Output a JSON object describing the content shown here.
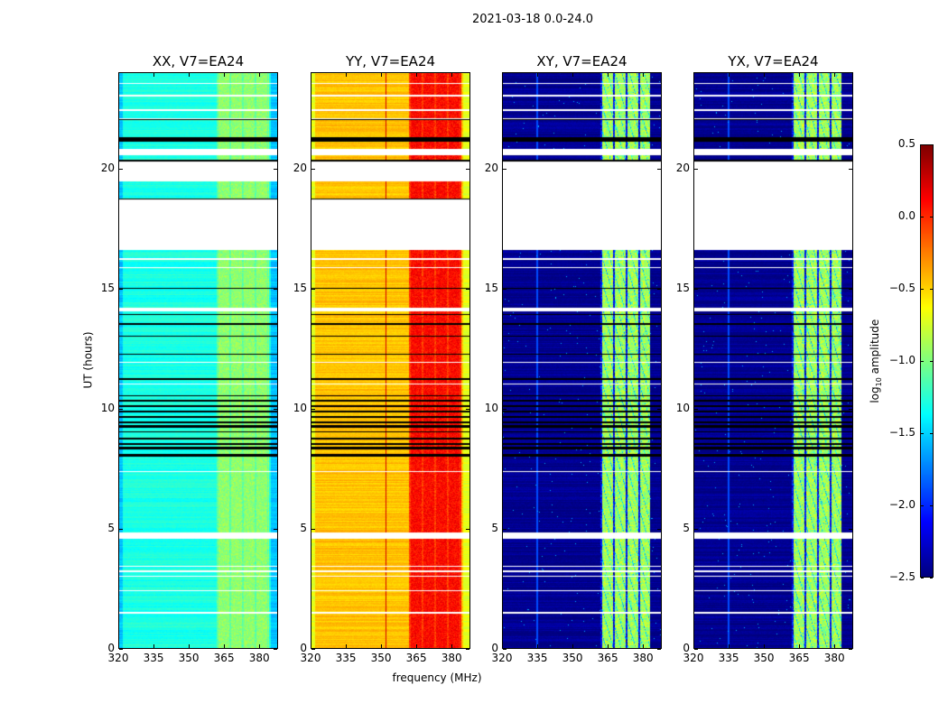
{
  "chart_data": {
    "type": "heatmap",
    "title": "2021-03-18 0.0-24.0",
    "xlabel": "frequency (MHz)",
    "ylabel": "UT (hours)",
    "xlim": [
      320,
      388
    ],
    "ylim": [
      0,
      24
    ],
    "xticks": [
      320,
      335,
      350,
      365,
      380
    ],
    "yticks": [
      0,
      5,
      10,
      15,
      20
    ],
    "colorbar": {
      "label_prefix": "log",
      "label_sub": "10",
      "label_suffix": " amplitude",
      "range": [
        -2.5,
        0.5
      ],
      "ticks": [
        "0.5",
        "0.0",
        "−0.5",
        "−1.0",
        "−1.5",
        "−2.0",
        "−2.5"
      ],
      "tick_values": [
        0.5,
        0.0,
        -0.5,
        -1.0,
        -1.5,
        -2.0,
        -2.5
      ],
      "colormap": "jet"
    },
    "panels": [
      {
        "title": "XX, V7=EA24",
        "base_level": -1.3,
        "band_level": -0.95,
        "band_mhz": [
          362,
          384
        ],
        "rfi_mhz": null
      },
      {
        "title": "YY, V7=EA24",
        "base_level": -0.45,
        "band_level": 0.1,
        "band_mhz": [
          362,
          384
        ],
        "rfi_mhz": 352
      },
      {
        "title": "XY, V7=EA24",
        "base_level": -2.45,
        "band_level": -0.9,
        "band_mhz": [
          362,
          383
        ],
        "rfi_mhz": 335
      },
      {
        "title": "YX, V7=EA24",
        "base_level": -2.45,
        "band_level": -0.9,
        "band_mhz": [
          362,
          383
        ],
        "rfi_mhz": 335
      }
    ],
    "blank_hours": [
      [
        16.6,
        18.7
      ],
      [
        19.45,
        20.3
      ],
      [
        20.55,
        20.8
      ],
      [
        1.45,
        1.55
      ],
      [
        2.4,
        2.45
      ],
      [
        3.0,
        3.05
      ],
      [
        3.2,
        3.25
      ],
      [
        3.4,
        3.45
      ],
      [
        4.6,
        4.85
      ],
      [
        7.35,
        7.4
      ],
      [
        11.0,
        11.05
      ],
      [
        11.9,
        11.95
      ],
      [
        14.05,
        14.2
      ],
      [
        15.85,
        15.9
      ],
      [
        16.2,
        16.25
      ],
      [
        22.05,
        22.1
      ],
      [
        22.4,
        22.45
      ],
      [
        23.0,
        23.05
      ],
      [
        23.5,
        23.55
      ]
    ],
    "blank_hours_cross_only": [
      [
        18.7,
        19.45
      ]
    ],
    "flagged_hours": [
      [
        21.1,
        21.3
      ],
      [
        20.3,
        20.35
      ],
      [
        8.0,
        8.1
      ],
      [
        8.3,
        8.4
      ],
      [
        8.5,
        8.55
      ],
      [
        8.7,
        8.8
      ],
      [
        9.0,
        9.05
      ],
      [
        9.2,
        9.3
      ],
      [
        9.4,
        9.45
      ],
      [
        9.6,
        9.7
      ],
      [
        9.85,
        9.9
      ],
      [
        10.05,
        10.15
      ],
      [
        10.3,
        10.35
      ],
      [
        10.5,
        10.55
      ],
      [
        11.2,
        11.25
      ],
      [
        12.25,
        12.3
      ],
      [
        13.0,
        13.05
      ],
      [
        13.5,
        13.55
      ],
      [
        13.9,
        13.95
      ],
      [
        15.0,
        15.03
      ],
      [
        18.7,
        18.73
      ],
      [
        22.0,
        22.03
      ]
    ]
  }
}
